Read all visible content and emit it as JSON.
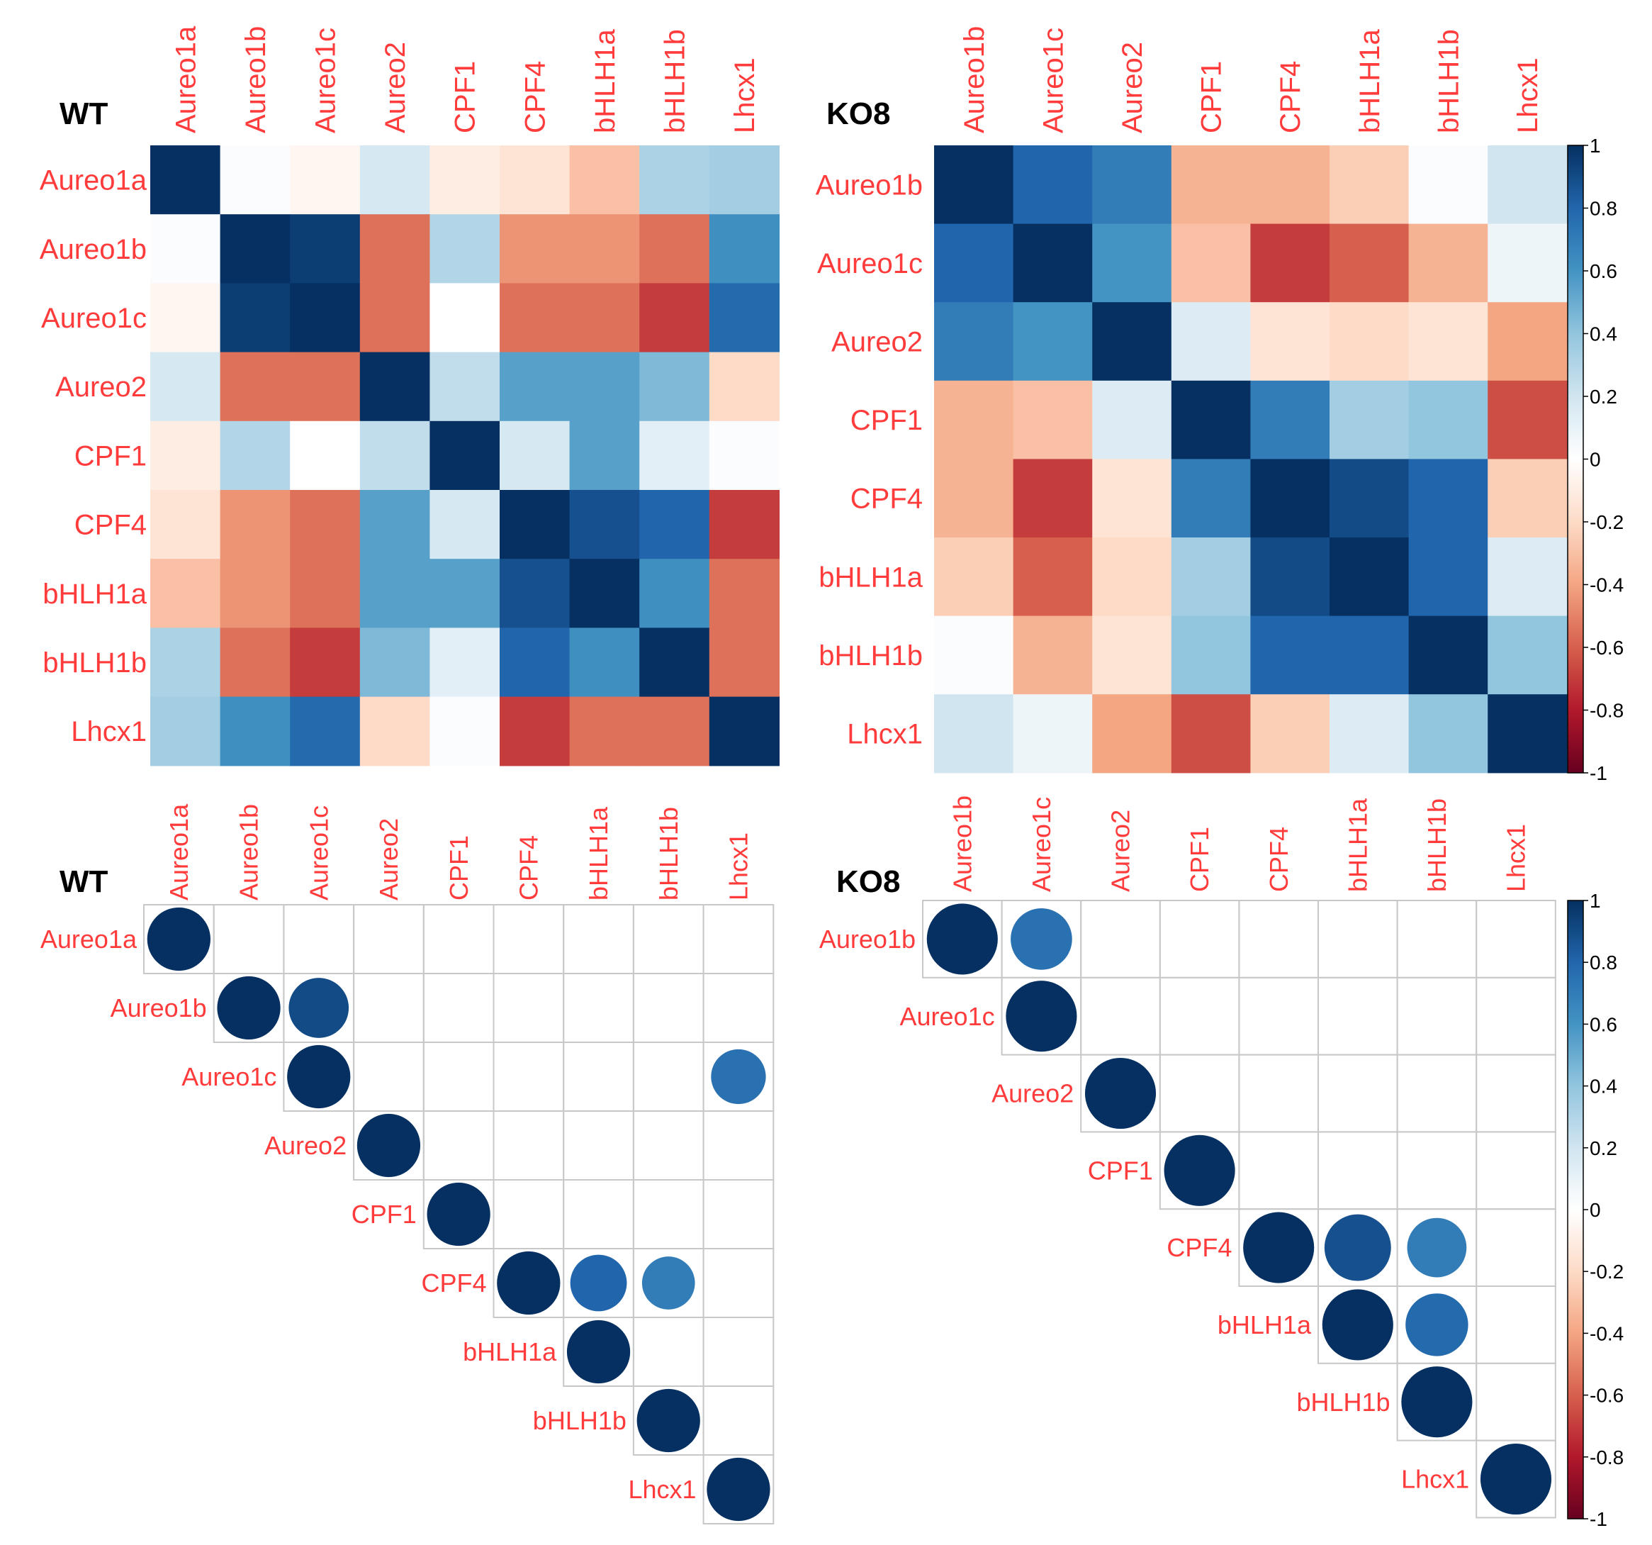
{
  "figure": {
    "colorbar_ticks": [
      "1",
      "0.8",
      "0.6",
      "0.4",
      "0.2",
      "0",
      "-0.2",
      "-0.4",
      "-0.6",
      "-0.8",
      "-1"
    ],
    "colors": {
      "label": "#ff3b3b",
      "title": "#000000",
      "scale_neg1": "#67001F",
      "scale_0": "#FFFFFF",
      "scale_pos1": "#053061"
    }
  },
  "chart_data": [
    {
      "type": "heatmap",
      "title": "WT",
      "panel": "top-left",
      "style": "full",
      "labels": [
        "Aureo1a",
        "Aureo1b",
        "Aureo1c",
        "Aureo2",
        "CPF1",
        "CPF4",
        "bHLH1a",
        "bHLH1b",
        "Lhcx1"
      ],
      "matrix": [
        [
          1.0,
          0.02,
          -0.05,
          0.18,
          -0.1,
          -0.15,
          -0.3,
          0.32,
          0.35
        ],
        [
          0.02,
          1.0,
          0.95,
          -0.55,
          0.3,
          -0.45,
          -0.45,
          -0.55,
          0.62
        ],
        [
          -0.05,
          0.95,
          1.0,
          -0.55,
          0.0,
          -0.55,
          -0.55,
          -0.7,
          0.78
        ],
        [
          0.18,
          -0.55,
          -0.55,
          1.0,
          0.25,
          0.55,
          0.55,
          0.45,
          -0.2
        ],
        [
          -0.1,
          0.3,
          0.0,
          0.25,
          1.0,
          0.18,
          0.55,
          0.12,
          0.02
        ],
        [
          -0.15,
          -0.45,
          -0.55,
          0.55,
          0.18,
          1.0,
          0.88,
          0.8,
          -0.7
        ],
        [
          -0.3,
          -0.45,
          -0.55,
          0.55,
          0.55,
          0.88,
          1.0,
          0.62,
          -0.55
        ],
        [
          0.32,
          -0.55,
          -0.7,
          0.45,
          0.12,
          0.8,
          0.62,
          1.0,
          -0.55
        ],
        [
          0.35,
          0.62,
          0.78,
          -0.2,
          0.02,
          -0.7,
          -0.55,
          -0.55,
          1.0
        ]
      ],
      "scale": [
        -1,
        1
      ]
    },
    {
      "type": "heatmap",
      "title": "KO8",
      "panel": "top-right",
      "style": "full",
      "labels": [
        "Aureo1b",
        "Aureo1c",
        "Aureo2",
        "CPF1",
        "CPF4",
        "bHLH1a",
        "bHLH1b",
        "Lhcx1"
      ],
      "matrix": [
        [
          1.0,
          0.8,
          0.7,
          -0.35,
          -0.35,
          -0.25,
          0.02,
          0.2
        ],
        [
          0.8,
          1.0,
          0.6,
          -0.3,
          -0.7,
          -0.6,
          -0.35,
          0.08
        ],
        [
          0.7,
          0.6,
          1.0,
          0.15,
          -0.15,
          -0.2,
          -0.15,
          -0.4
        ],
        [
          -0.35,
          -0.3,
          0.15,
          1.0,
          0.7,
          0.35,
          0.4,
          -0.65
        ],
        [
          -0.35,
          -0.7,
          -0.15,
          0.7,
          1.0,
          0.9,
          0.8,
          -0.25
        ],
        [
          -0.25,
          -0.6,
          -0.2,
          0.35,
          0.9,
          1.0,
          0.8,
          0.15
        ],
        [
          0.02,
          -0.35,
          -0.15,
          0.4,
          0.8,
          0.8,
          1.0,
          0.4
        ],
        [
          0.2,
          0.08,
          -0.4,
          -0.65,
          -0.25,
          0.15,
          0.4,
          1.0
        ]
      ],
      "scale": [
        -1,
        1
      ],
      "legend": "colorbar right"
    },
    {
      "type": "heatmap",
      "title": "WT",
      "panel": "bottom-left",
      "style": "upper-triangle circles (significant only)",
      "labels": [
        "Aureo1a",
        "Aureo1b",
        "Aureo1c",
        "Aureo2",
        "CPF1",
        "CPF4",
        "bHLH1a",
        "bHLH1b",
        "Lhcx1"
      ],
      "circles": [
        {
          "row": 0,
          "col": 0,
          "value": 1.0
        },
        {
          "row": 1,
          "col": 1,
          "value": 1.0
        },
        {
          "row": 1,
          "col": 2,
          "value": 0.9
        },
        {
          "row": 2,
          "col": 2,
          "value": 1.0
        },
        {
          "row": 2,
          "col": 8,
          "value": 0.75
        },
        {
          "row": 3,
          "col": 3,
          "value": 1.0
        },
        {
          "row": 4,
          "col": 4,
          "value": 1.0
        },
        {
          "row": 5,
          "col": 5,
          "value": 1.0
        },
        {
          "row": 5,
          "col": 6,
          "value": 0.8
        },
        {
          "row": 5,
          "col": 7,
          "value": 0.7
        },
        {
          "row": 6,
          "col": 6,
          "value": 1.0
        },
        {
          "row": 7,
          "col": 7,
          "value": 1.0
        },
        {
          "row": 8,
          "col": 8,
          "value": 1.0
        }
      ],
      "scale": [
        -1,
        1
      ]
    },
    {
      "type": "heatmap",
      "title": "KO8",
      "panel": "bottom-right",
      "style": "upper-triangle circles (significant only)",
      "labels": [
        "Aureo1b",
        "Aureo1c",
        "Aureo2",
        "CPF1",
        "CPF4",
        "bHLH1a",
        "bHLH1b",
        "Lhcx1"
      ],
      "circles": [
        {
          "row": 0,
          "col": 0,
          "value": 1.0
        },
        {
          "row": 0,
          "col": 1,
          "value": 0.75
        },
        {
          "row": 1,
          "col": 1,
          "value": 1.0
        },
        {
          "row": 2,
          "col": 2,
          "value": 1.0
        },
        {
          "row": 3,
          "col": 3,
          "value": 1.0
        },
        {
          "row": 4,
          "col": 4,
          "value": 1.0
        },
        {
          "row": 4,
          "col": 5,
          "value": 0.88
        },
        {
          "row": 4,
          "col": 6,
          "value": 0.7
        },
        {
          "row": 5,
          "col": 5,
          "value": 1.0
        },
        {
          "row": 5,
          "col": 6,
          "value": 0.78
        },
        {
          "row": 6,
          "col": 6,
          "value": 1.0
        },
        {
          "row": 7,
          "col": 7,
          "value": 1.0
        }
      ],
      "scale": [
        -1,
        1
      ],
      "legend": "colorbar right"
    }
  ]
}
